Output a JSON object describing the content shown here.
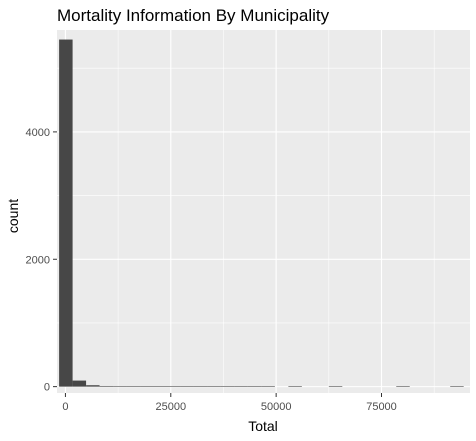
{
  "chart_data": {
    "type": "bar",
    "title": "Mortality Information By Municipality",
    "xlabel": "Total",
    "ylabel": "count",
    "xlim": [
      -2000,
      96000
    ],
    "ylim": [
      -100,
      5600
    ],
    "x_ticks": [
      0,
      25000,
      50000,
      75000
    ],
    "x_tick_labels": [
      "0",
      "25000",
      "50000",
      "75000"
    ],
    "y_ticks": [
      0,
      2000,
      4000
    ],
    "y_tick_labels": [
      "0",
      "2000",
      "4000"
    ],
    "bins": {
      "width": 3200,
      "starts": [
        -1500,
        1700,
        4900,
        8100,
        11300,
        14500,
        17700,
        20900,
        24100,
        27300,
        30500,
        33700,
        36900,
        40100,
        43300,
        46500,
        49700,
        52900,
        56100,
        59300,
        62500,
        65700,
        68900,
        72100,
        75300,
        78500,
        81700,
        84900,
        88100,
        91300
      ],
      "counts": [
        5450,
        95,
        22,
        10,
        7,
        5,
        4,
        3,
        2,
        2,
        2,
        1,
        1,
        1,
        1,
        1,
        0,
        1,
        0,
        0,
        1,
        0,
        0,
        0,
        0,
        1,
        0,
        0,
        0,
        1
      ]
    },
    "grid": true,
    "colors": {
      "bar": "#474747",
      "panel": "#ebebeb",
      "grid_major": "#ffffff"
    }
  }
}
